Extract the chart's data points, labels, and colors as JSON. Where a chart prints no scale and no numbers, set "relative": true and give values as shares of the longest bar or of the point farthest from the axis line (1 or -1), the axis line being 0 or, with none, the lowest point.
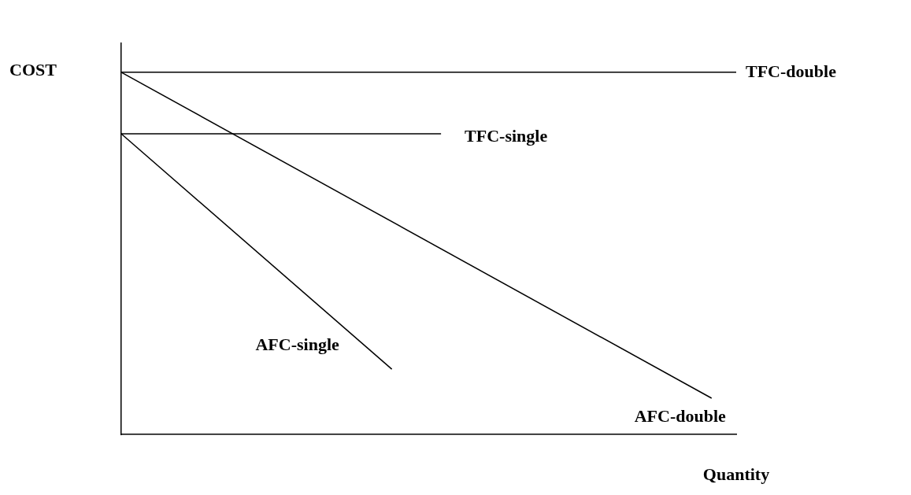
{
  "chart_data": {
    "type": "line",
    "relative": true,
    "xlabel": "Quantity",
    "ylabel": "COST",
    "legend": false,
    "grid": false,
    "tick_labels": false,
    "marker": "none",
    "line_style": "solid",
    "categories": [
      null,
      null,
      null,
      null,
      null,
      null,
      null,
      null,
      null,
      null,
      null,
      null,
      null,
      null,
      null,
      null,
      null,
      null,
      null,
      null,
      null,
      null,
      null,
      null,
      null,
      null
    ],
    "series": [
      {
        "name": "TFC-double",
        "color": "#000000",
        "values": [
          1,
          null,
          null,
          null,
          null,
          null,
          null,
          null,
          null,
          null,
          null,
          null,
          null,
          null,
          null,
          null,
          null,
          null,
          null,
          null,
          null,
          null,
          null,
          null,
          null,
          1
        ]
      },
      {
        "name": "TFC-single",
        "color": "#000000",
        "values": [
          0.83,
          null,
          null,
          null,
          null,
          null,
          null,
          null,
          null,
          null,
          null,
          null,
          null,
          0.83,
          null,
          null,
          null,
          null,
          null,
          null,
          null,
          null,
          null,
          null,
          null,
          null
        ]
      },
      {
        "name": "AFC-single",
        "color": "#000000",
        "values": [
          0.83,
          null,
          null,
          null,
          null,
          null,
          null,
          null,
          null,
          null,
          null,
          0.18,
          null,
          null,
          null,
          null,
          null,
          null,
          null,
          null,
          null,
          null,
          null,
          null,
          null,
          null
        ]
      },
      {
        "name": "AFC-double",
        "color": "#000000",
        "values": [
          1,
          null,
          null,
          null,
          null,
          null,
          null,
          null,
          null,
          null,
          null,
          null,
          null,
          null,
          null,
          null,
          null,
          null,
          null,
          null,
          null,
          null,
          null,
          null,
          0.1,
          null
        ]
      }
    ]
  }
}
